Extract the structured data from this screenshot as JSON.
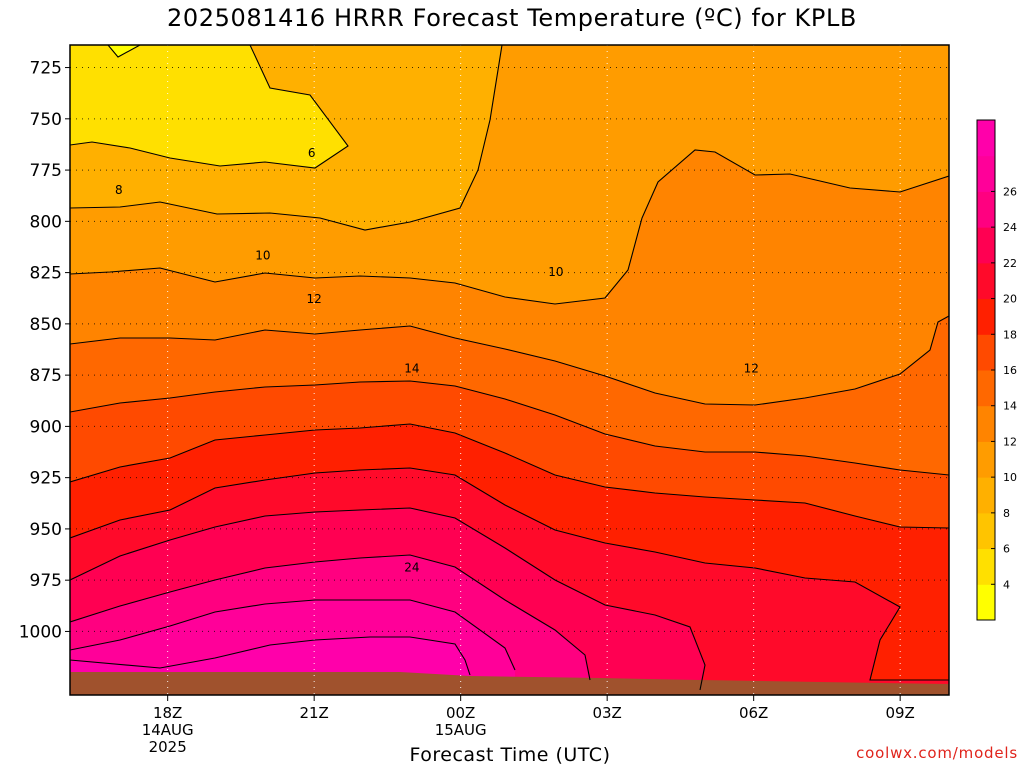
{
  "chart_data": {
    "type": "heatmap",
    "title": "2025081416 HRRR Forecast Temperature (ºC) for KPLB",
    "xlabel": "Forecast Time (UTC)",
    "ylabel": "",
    "credit": "coolwx.com/models",
    "x_ticks": [
      {
        "label": "18Z",
        "hour": 18,
        "sub": [
          "14AUG",
          "2025"
        ]
      },
      {
        "label": "21Z",
        "hour": 21,
        "sub": []
      },
      {
        "label": "00Z",
        "hour": 24,
        "sub": [
          "15AUG"
        ]
      },
      {
        "label": "03Z",
        "hour": 27,
        "sub": []
      },
      {
        "label": "06Z",
        "hour": 30,
        "sub": []
      },
      {
        "label": "09Z",
        "hour": 33,
        "sub": []
      }
    ],
    "xlim_hours": [
      16,
      34
    ],
    "y_ticks": [
      725,
      750,
      775,
      800,
      825,
      850,
      875,
      900,
      925,
      950,
      975,
      1000
    ],
    "ylim_hPa": [
      714,
      1031
    ],
    "colorbar": {
      "ticks": [
        4,
        6,
        8,
        10,
        12,
        14,
        16,
        18,
        20,
        22,
        24,
        26
      ],
      "colors": [
        "#ffff00",
        "#ffe000",
        "#ffc400",
        "#ffb000",
        "#ff9c00",
        "#ff8400",
        "#ff6800",
        "#ff4a00",
        "#ff2000",
        "#ff0a2a",
        "#ff0052",
        "#ff0080",
        "#ff0099",
        "#ff00aa"
      ]
    },
    "ground_color": "#a0522d",
    "ground_hPa": 1033,
    "contour_labels": [
      {
        "value": 6,
        "hour": 20.95,
        "hPa": 767
      },
      {
        "value": 8,
        "hour": 17.0,
        "hPa": 785
      },
      {
        "value": 10,
        "hour": 19.95,
        "hPa": 817
      },
      {
        "value": 10,
        "hour": 25.95,
        "hPa": 825
      },
      {
        "value": 12,
        "hour": 21.0,
        "hPa": 838
      },
      {
        "value": 12,
        "hour": 29.95,
        "hPa": 872
      },
      {
        "value": 14,
        "hour": 23.0,
        "hPa": 872
      },
      {
        "value": 24,
        "hour": 23.0,
        "hPa": 969
      }
    ]
  }
}
